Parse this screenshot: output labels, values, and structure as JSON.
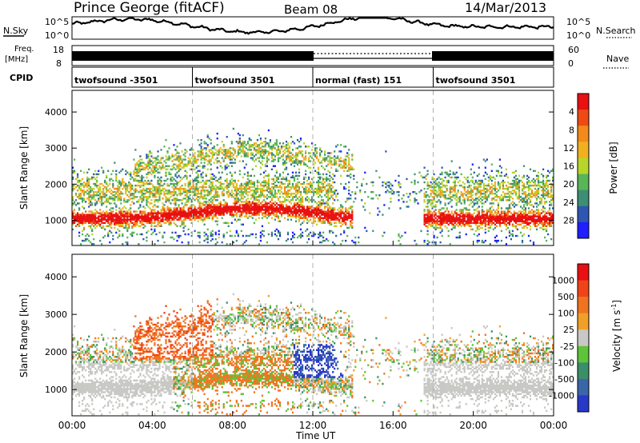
{
  "header": {
    "station": "Prince George (fitACF)",
    "beam": "Beam 08",
    "date": "14/Mar/2013"
  },
  "top_panels": {
    "nsky_label": "N.Sky",
    "nsearch_label": "N.Search",
    "freq_label_1": "Freq.",
    "freq_label_2": "[MHz]",
    "nave_label": "Nave",
    "cpid_label": "CPID",
    "noise_left_ticks": [
      "10^5",
      "10^0"
    ],
    "noise_right_ticks": [
      "10^5",
      "10^0"
    ],
    "freq_left_ticks": [
      "18",
      "8"
    ],
    "freq_right_ticks": [
      "60",
      "0"
    ]
  },
  "cpid_segments": [
    {
      "label": "twofsound -3501",
      "start_h": 0,
      "end_h": 6
    },
    {
      "label": "twofsound 3501",
      "start_h": 6,
      "end_h": 12
    },
    {
      "label": "normal (fast) 151",
      "start_h": 12,
      "end_h": 18
    },
    {
      "label": "twofsound 3501",
      "start_h": 18,
      "end_h": 24
    }
  ],
  "x_ticks": [
    "00:00",
    "04:00",
    "08:00",
    "12:00",
    "16:00",
    "20:00",
    "00:00"
  ],
  "x_axis_label": "Time UT",
  "power_panel": {
    "ylabel": "Slant Range [km]",
    "yticks": [
      "1000",
      "2000",
      "3000",
      "4000"
    ],
    "colorbar_label": "Power [dB]",
    "colorbar_ticks": [
      "4",
      "8",
      "12",
      "16",
      "20",
      "24",
      "28"
    ],
    "colors": [
      "#1f1fff",
      "#2f56b3",
      "#3c8f74",
      "#58b558",
      "#b8d62a",
      "#f0b020",
      "#f38a1b",
      "#f04a14",
      "#e81010"
    ]
  },
  "velocity_panel": {
    "ylabel": "Slant Range [km]",
    "yticks": [
      "1000",
      "2000",
      "3000",
      "4000"
    ],
    "colorbar_label_main": "Velocity  [m s",
    "colorbar_label_sup": "-1",
    "colorbar_label_end": "]",
    "colorbar_ticks": [
      "1000",
      "500",
      "100",
      "25",
      "-25",
      "-100",
      "-500",
      "-1000"
    ],
    "colors": [
      "#2838c8",
      "#3a66a8",
      "#3a8f6a",
      "#5ec43a",
      "#c8c8c4",
      "#f0a028",
      "#f07420",
      "#f04418",
      "#e81010"
    ]
  },
  "chart_data": {
    "type": "heatmap",
    "x_range_hours": [
      0,
      24
    ],
    "y_range_km": [
      300,
      4600
    ],
    "power_db_range": [
      0,
      32
    ],
    "velocity_range_ms": [
      -1000,
      1000
    ],
    "grid": "vertical dashed lines at 06:00, 12:00, 18:00"
  }
}
